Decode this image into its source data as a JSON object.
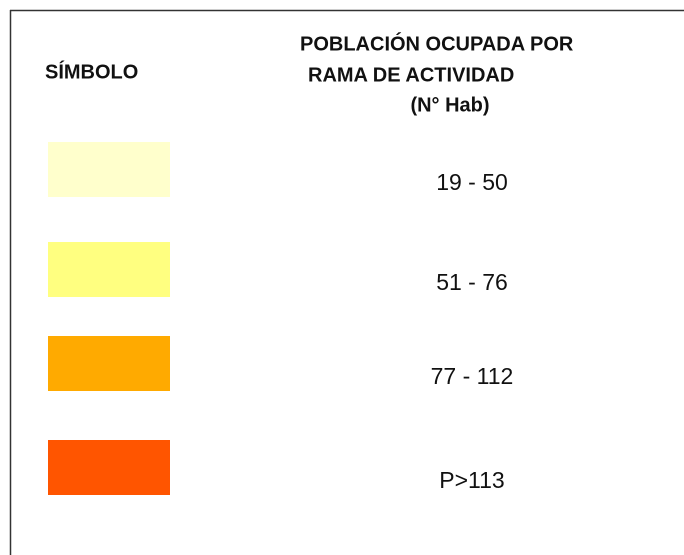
{
  "legend": {
    "symbol_header": "SÍMBOLO",
    "title_lines": [
      "POBLACIÓN OCUPADA POR",
      "RAMA DE ACTIVIDAD",
      "(N° Hab)"
    ],
    "items": [
      {
        "label": "19 - 50",
        "color": "#FFFFCC"
      },
      {
        "label": "51 - 76",
        "color": "#FFFF80"
      },
      {
        "label": "77 - 112",
        "color": "#FFAA00"
      },
      {
        "label": "P>113",
        "color": "#FF5500"
      }
    ]
  }
}
